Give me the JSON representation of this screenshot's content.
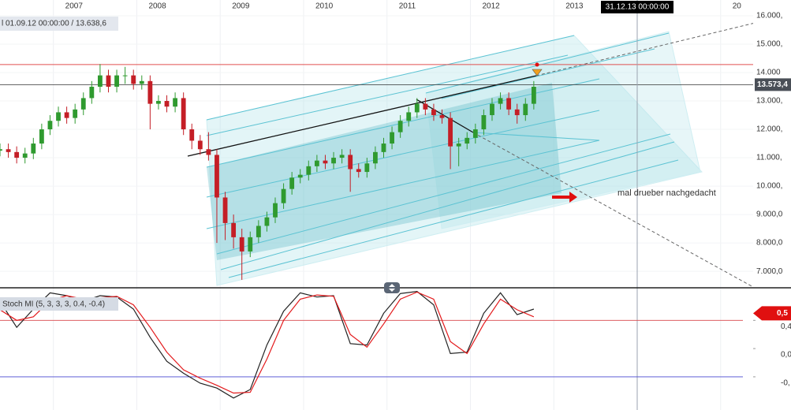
{
  "chart_data": [
    {
      "type": "candlestick",
      "header": "l 01.09.12 00:00:00 / 13.638,6",
      "x": [
        2006.36,
        2006.46,
        2006.56,
        2006.66,
        2006.76,
        2006.86,
        2006.96,
        2007.06,
        2007.16,
        2007.26,
        2007.36,
        2007.46,
        2007.56,
        2007.66,
        2007.76,
        2007.86,
        2007.96,
        2008.06,
        2008.16,
        2008.26,
        2008.36,
        2008.46,
        2008.56,
        2008.66,
        2008.76,
        2008.86,
        2008.96,
        2009.06,
        2009.16,
        2009.26,
        2009.36,
        2009.46,
        2009.56,
        2009.66,
        2009.76,
        2009.86,
        2009.96,
        2010.06,
        2010.16,
        2010.26,
        2010.36,
        2010.46,
        2010.56,
        2010.66,
        2010.76,
        2010.86,
        2010.96,
        2011.06,
        2011.16,
        2011.26,
        2011.36,
        2011.46,
        2011.56,
        2011.66,
        2011.76,
        2011.86,
        2011.96,
        2012.06,
        2012.16,
        2012.26,
        2012.36,
        2012.46,
        2012.56,
        2012.66,
        2012.76
      ],
      "open": [
        11250,
        11300,
        11200,
        11000,
        11150,
        11500,
        12000,
        12300,
        12600,
        12400,
        12700,
        13100,
        13500,
        13900,
        13500,
        13900,
        13900,
        13600,
        13700,
        12900,
        13000,
        12800,
        13100,
        12000,
        11600,
        11300,
        11100,
        9600,
        8700,
        8200,
        7700,
        8200,
        8600,
        8900,
        9400,
        9900,
        10300,
        10400,
        10700,
        10900,
        10800,
        11000,
        11100,
        10600,
        10500,
        10800,
        11200,
        11500,
        11900,
        12300,
        12600,
        12900,
        12700,
        12500,
        12400,
        11400,
        11500,
        11700,
        12000,
        12500,
        12900,
        13100,
        12700,
        12500,
        12900
      ],
      "high": [
        11500,
        11500,
        11400,
        11350,
        11700,
        12200,
        12500,
        12800,
        12800,
        12900,
        13300,
        13700,
        14300,
        14100,
        14100,
        14200,
        14100,
        13900,
        13900,
        13200,
        13200,
        13300,
        13300,
        12200,
        11800,
        11900,
        11300,
        9800,
        9000,
        8500,
        8400,
        8800,
        9100,
        9600,
        10100,
        10500,
        10600,
        10900,
        11100,
        11100,
        11200,
        11300,
        11300,
        10800,
        11000,
        11400,
        11700,
        12100,
        12500,
        12800,
        13100,
        13100,
        12900,
        12700,
        12600,
        11700,
        11900,
        12200,
        12700,
        13100,
        13300,
        13300,
        12900,
        13100,
        13700
      ],
      "low": [
        11050,
        11000,
        10800,
        10800,
        10950,
        11300,
        11800,
        12100,
        12200,
        12200,
        12500,
        12900,
        13300,
        13300,
        13300,
        13600,
        13400,
        13400,
        12000,
        12700,
        12600,
        12600,
        11800,
        11300,
        11100,
        10900,
        8000,
        8100,
        7800,
        6700,
        7500,
        8000,
        8400,
        8700,
        9200,
        9700,
        10100,
        10200,
        10500,
        10600,
        10600,
        10800,
        9800,
        10300,
        10300,
        10600,
        11000,
        11300,
        11700,
        12100,
        12400,
        12500,
        12300,
        12200,
        10600,
        10700,
        11300,
        11500,
        11800,
        12300,
        12700,
        12500,
        12200,
        12300,
        12700
      ],
      "close": [
        11300,
        11200,
        11000,
        11150,
        11500,
        12000,
        12300,
        12600,
        12400,
        12700,
        13100,
        13500,
        13900,
        13500,
        13900,
        13900,
        13600,
        13700,
        12900,
        13000,
        12800,
        13100,
        12000,
        11600,
        11300,
        11100,
        9600,
        8700,
        8200,
        7700,
        8200,
        8600,
        8900,
        9400,
        9900,
        10300,
        10400,
        10700,
        10900,
        10800,
        11000,
        11100,
        10600,
        10500,
        10800,
        11200,
        11500,
        11900,
        12300,
        12600,
        12900,
        12700,
        12500,
        12400,
        11400,
        11500,
        11700,
        12000,
        12500,
        12900,
        13100,
        12700,
        12500,
        12900,
        13500
      ],
      "up_color": "#2f9a2f",
      "down_color": "#c41e26",
      "xlim": [
        2006.36,
        2015.39
      ],
      "xticks": [
        2007,
        2008,
        2009,
        2010,
        2011,
        2012,
        2013,
        {
          "value": 2015,
          "label": "20"
        }
      ],
      "ylim": [
        6420,
        16555
      ],
      "yticks": [
        {
          "value": 16000,
          "label": "16.000,"
        },
        {
          "value": 15000,
          "label": "15.000,"
        },
        {
          "value": 14000,
          "label": "14.000"
        },
        {
          "value": 13000,
          "label": "13.000,"
        },
        {
          "value": 12000,
          "label": "12.000,"
        },
        {
          "value": 11000,
          "label": "11.000,"
        },
        {
          "value": 10000,
          "label": "10.000,"
        },
        {
          "value": 9000,
          "label": "9.000,0"
        },
        {
          "value": 8000,
          "label": "8.000,0"
        },
        {
          "value": 7000,
          "label": "7.000,0"
        }
      ],
      "price_line": {
        "value": 13573.4,
        "label": "13.573,4"
      },
      "alert_line": 14280,
      "cursor": {
        "value": 2014,
        "label": "31.12.13 00:00:00"
      },
      "annotation": "mal drueber nachgedacht"
    },
    {
      "type": "line",
      "title": "Stoch MI (5, 3, 3, 3, 0.4, -0.4)",
      "x": [
        2006.36,
        2006.56,
        2006.76,
        2006.96,
        2007.16,
        2007.36,
        2007.56,
        2007.76,
        2007.96,
        2008.16,
        2008.36,
        2008.56,
        2008.76,
        2008.96,
        2009.16,
        2009.36,
        2009.56,
        2009.76,
        2009.96,
        2010.16,
        2010.36,
        2010.56,
        2010.76,
        2010.96,
        2011.16,
        2011.36,
        2011.56,
        2011.76,
        2011.96,
        2012.16,
        2012.36,
        2012.56,
        2012.76
      ],
      "series": [
        {
          "color": "#222222",
          "values": [
            0.67,
            0.3,
            0.56,
            0.79,
            0.75,
            0.67,
            0.75,
            0.73,
            0.56,
            0.16,
            -0.18,
            -0.35,
            -0.49,
            -0.56,
            -0.7,
            -0.58,
            0.05,
            0.53,
            0.79,
            0.73,
            0.75,
            0.07,
            0.05,
            0.5,
            0.78,
            0.81,
            0.62,
            -0.07,
            -0.05,
            0.5,
            0.79,
            0.48,
            0.56
          ]
        },
        {
          "color": "#e31a1c",
          "values": [
            0.55,
            0.4,
            0.45,
            0.68,
            0.75,
            0.7,
            0.72,
            0.74,
            0.62,
            0.3,
            -0.05,
            -0.3,
            -0.42,
            -0.52,
            -0.63,
            -0.62,
            -0.15,
            0.4,
            0.7,
            0.76,
            0.74,
            0.2,
            0.02,
            0.35,
            0.7,
            0.8,
            0.7,
            0.1,
            -0.07,
            0.35,
            0.7,
            0.55,
            0.45
          ]
        }
      ],
      "ylim": [
        -0.87,
        0.85
      ],
      "yticks": [
        {
          "value": 0.4,
          "label": "0,4"
        },
        {
          "value": 0,
          "label": "0,0"
        },
        {
          "value": -0.4,
          "label": "-0,"
        }
      ],
      "levels": [
        {
          "value": 0.4,
          "color": "#d9474b"
        },
        {
          "value": -0.4,
          "color": "#4a4ad0"
        }
      ],
      "current": {
        "value": 0.5,
        "label": "0,5"
      }
    }
  ]
}
